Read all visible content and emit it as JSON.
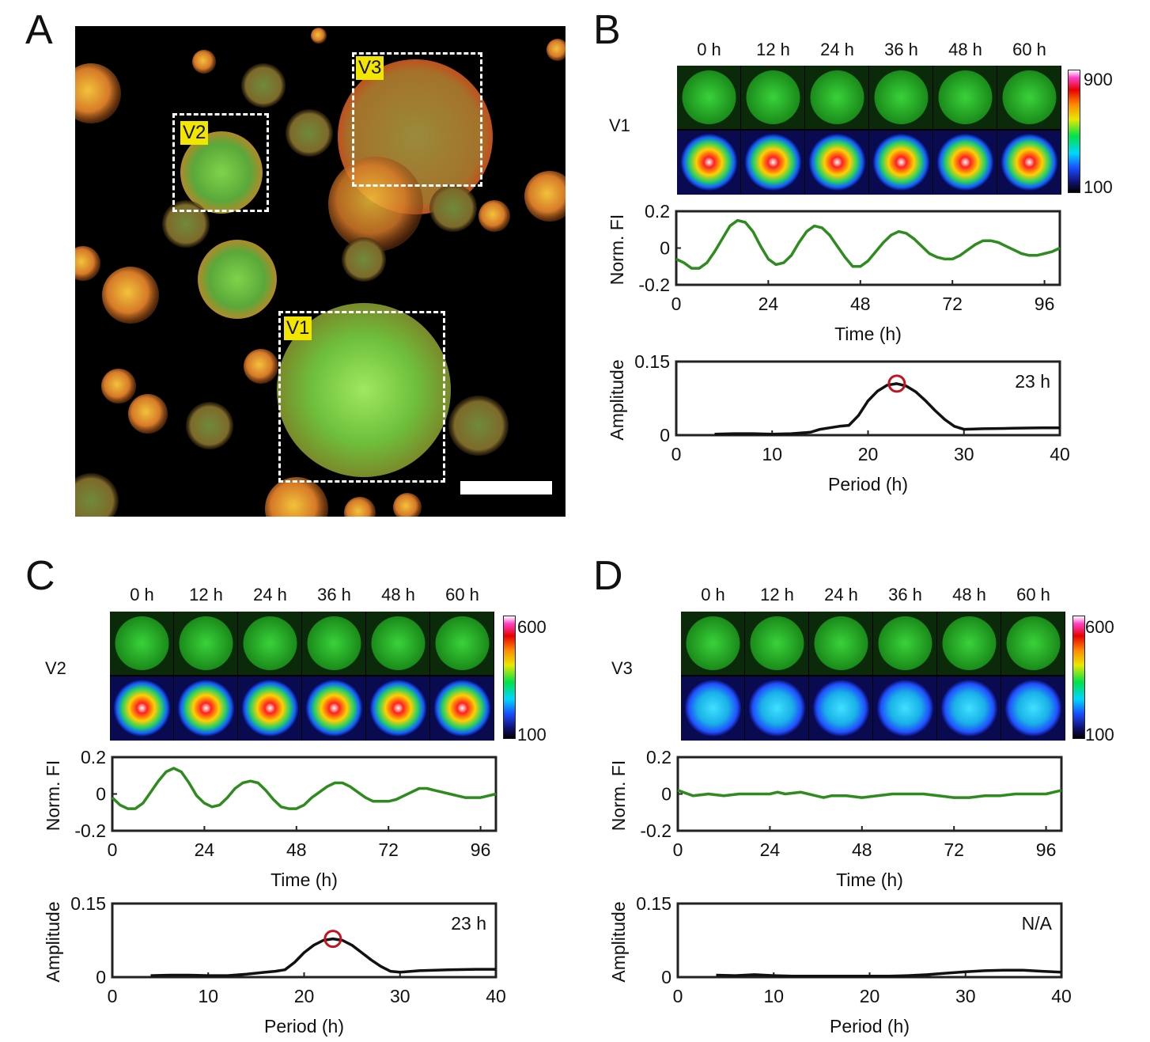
{
  "panels": {
    "A": {
      "letter": "A",
      "tags": [
        "V2",
        "V3",
        "V1"
      ]
    },
    "B": {
      "letter": "B",
      "times": [
        "0 h",
        "12 h",
        "24 h",
        "36 h",
        "48 h",
        "60 h"
      ],
      "row_label": "V1",
      "colorbar": {
        "max": "900",
        "min": "100"
      },
      "fi_ylabel": "Norm. FI",
      "fi_yticks": [
        "0.2",
        "0",
        "-0.2"
      ],
      "fi_xticks": [
        "0",
        "24",
        "48",
        "72",
        "96"
      ],
      "fi_xlabel": "Time (h)",
      "amp_ylabel": "Amplitude",
      "amp_yticks": [
        "0.15",
        "0"
      ],
      "amp_xticks": [
        "0",
        "10",
        "20",
        "30",
        "40"
      ],
      "amp_xlabel": "Period (h)",
      "amp_annotation": "23 h"
    },
    "C": {
      "letter": "C",
      "times": [
        "0 h",
        "12 h",
        "24 h",
        "36 h",
        "48 h",
        "60 h"
      ],
      "row_label": "V2",
      "colorbar": {
        "max": "600",
        "min": "100"
      },
      "fi_ylabel": "Norm. FI",
      "fi_yticks": [
        "0.2",
        "0",
        "-0.2"
      ],
      "fi_xticks": [
        "0",
        "24",
        "48",
        "72",
        "96"
      ],
      "fi_xlabel": "Time (h)",
      "amp_ylabel": "Amplitude",
      "amp_yticks": [
        "0.15",
        "0"
      ],
      "amp_xticks": [
        "0",
        "10",
        "20",
        "30",
        "40"
      ],
      "amp_xlabel": "Period (h)",
      "amp_annotation": "23 h"
    },
    "D": {
      "letter": "D",
      "times": [
        "0 h",
        "12 h",
        "24 h",
        "36 h",
        "48 h",
        "60 h"
      ],
      "row_label": "V3",
      "colorbar": {
        "max": "600",
        "min": "100"
      },
      "fi_ylabel": "Norm. FI",
      "fi_yticks": [
        "0.2",
        "0",
        "-0.2"
      ],
      "fi_xticks": [
        "0",
        "24",
        "48",
        "72",
        "96"
      ],
      "fi_xlabel": "Time (h)",
      "amp_ylabel": "Amplitude",
      "amp_yticks": [
        "0.15",
        "0"
      ],
      "amp_xticks": [
        "0",
        "10",
        "20",
        "30",
        "40"
      ],
      "amp_xlabel": "Period (h)",
      "amp_annotation": "N/A"
    }
  },
  "colors": {
    "trace": "#2e8b1e",
    "spectrum": "#111111",
    "peak_marker": "#c0141e",
    "tag": "#f2e600"
  },
  "chart_data": [
    {
      "panel": "B",
      "type": "line",
      "xlabel": "Time (h)",
      "ylabel": "Norm. FI",
      "xlim": [
        0,
        100
      ],
      "ylim": [
        -0.2,
        0.2
      ],
      "x": [
        0,
        2,
        4,
        6,
        8,
        10,
        12,
        14,
        16,
        18,
        20,
        22,
        24,
        26,
        28,
        30,
        32,
        34,
        36,
        38,
        40,
        42,
        44,
        46,
        48,
        50,
        52,
        54,
        56,
        58,
        60,
        62,
        64,
        66,
        68,
        70,
        72,
        74,
        76,
        78,
        80,
        82,
        84,
        86,
        88,
        90,
        92,
        94,
        96,
        98,
        100
      ],
      "values": [
        -0.06,
        -0.08,
        -0.11,
        -0.11,
        -0.08,
        -0.02,
        0.05,
        0.12,
        0.15,
        0.14,
        0.09,
        0.01,
        -0.06,
        -0.09,
        -0.08,
        -0.04,
        0.03,
        0.09,
        0.12,
        0.11,
        0.07,
        0.01,
        -0.05,
        -0.1,
        -0.1,
        -0.07,
        -0.02,
        0.03,
        0.07,
        0.09,
        0.08,
        0.05,
        0.01,
        -0.03,
        -0.05,
        -0.06,
        -0.06,
        -0.04,
        -0.01,
        0.02,
        0.04,
        0.04,
        0.03,
        0.01,
        -0.01,
        -0.03,
        -0.04,
        -0.04,
        -0.03,
        -0.02,
        0.0
      ]
    },
    {
      "panel": "B",
      "type": "line",
      "xlabel": "Period (h)",
      "ylabel": "Amplitude",
      "xlim": [
        0,
        40
      ],
      "ylim": [
        0,
        0.15
      ],
      "x": [
        4,
        6,
        8,
        10,
        12,
        14,
        15,
        16,
        17,
        18,
        19,
        20,
        21,
        22,
        23,
        24,
        25,
        26,
        27,
        28,
        29,
        30,
        32,
        35,
        38,
        40
      ],
      "values": [
        0.002,
        0.003,
        0.003,
        0.002,
        0.003,
        0.006,
        0.012,
        0.015,
        0.018,
        0.02,
        0.04,
        0.07,
        0.09,
        0.102,
        0.105,
        0.1,
        0.088,
        0.07,
        0.05,
        0.032,
        0.018,
        0.012,
        0.013,
        0.014,
        0.015,
        0.015
      ],
      "peak": {
        "x": 23,
        "y": 0.105
      }
    },
    {
      "panel": "C",
      "type": "line",
      "xlabel": "Time (h)",
      "ylabel": "Norm. FI",
      "xlim": [
        0,
        100
      ],
      "ylim": [
        -0.2,
        0.2
      ],
      "x": [
        0,
        2,
        4,
        6,
        8,
        10,
        12,
        14,
        16,
        18,
        20,
        22,
        24,
        26,
        28,
        30,
        32,
        34,
        36,
        38,
        40,
        42,
        44,
        46,
        48,
        50,
        52,
        54,
        56,
        58,
        60,
        62,
        64,
        66,
        68,
        70,
        72,
        74,
        76,
        78,
        80,
        82,
        84,
        86,
        88,
        90,
        92,
        94,
        96,
        98,
        100
      ],
      "values": [
        -0.02,
        -0.06,
        -0.08,
        -0.08,
        -0.05,
        0.01,
        0.07,
        0.12,
        0.14,
        0.12,
        0.06,
        -0.01,
        -0.05,
        -0.07,
        -0.06,
        -0.02,
        0.03,
        0.06,
        0.07,
        0.06,
        0.02,
        -0.03,
        -0.07,
        -0.08,
        -0.08,
        -0.06,
        -0.02,
        0.01,
        0.04,
        0.06,
        0.06,
        0.04,
        0.01,
        -0.02,
        -0.04,
        -0.04,
        -0.04,
        -0.03,
        -0.01,
        0.01,
        0.03,
        0.03,
        0.02,
        0.01,
        0.0,
        -0.01,
        -0.02,
        -0.02,
        -0.02,
        -0.01,
        0.0
      ]
    },
    {
      "panel": "C",
      "type": "line",
      "xlabel": "Period (h)",
      "ylabel": "Amplitude",
      "xlim": [
        0,
        40
      ],
      "ylim": [
        0,
        0.15
      ],
      "x": [
        4,
        6,
        8,
        10,
        12,
        14,
        15,
        16,
        17,
        18,
        19,
        20,
        21,
        22,
        23,
        24,
        25,
        26,
        27,
        28,
        29,
        30,
        32,
        35,
        38,
        40
      ],
      "values": [
        0.003,
        0.004,
        0.004,
        0.003,
        0.003,
        0.006,
        0.008,
        0.01,
        0.012,
        0.015,
        0.03,
        0.05,
        0.065,
        0.075,
        0.078,
        0.075,
        0.065,
        0.05,
        0.035,
        0.022,
        0.012,
        0.01,
        0.013,
        0.015,
        0.016,
        0.016
      ],
      "peak": {
        "x": 23,
        "y": 0.078
      }
    },
    {
      "panel": "D",
      "type": "line",
      "xlabel": "Time (h)",
      "ylabel": "Norm. FI",
      "xlim": [
        0,
        100
      ],
      "ylim": [
        -0.2,
        0.2
      ],
      "x": [
        0,
        4,
        8,
        12,
        16,
        20,
        24,
        26,
        28,
        32,
        36,
        38,
        40,
        44,
        48,
        52,
        56,
        60,
        64,
        68,
        72,
        76,
        80,
        84,
        88,
        92,
        96,
        100
      ],
      "values": [
        0.02,
        -0.01,
        0.0,
        -0.01,
        0.0,
        0.0,
        0.0,
        0.01,
        0.0,
        0.01,
        -0.01,
        -0.02,
        -0.01,
        -0.01,
        -0.02,
        -0.01,
        0.0,
        0.0,
        0.0,
        -0.01,
        -0.02,
        -0.02,
        -0.01,
        -0.01,
        0.0,
        0.0,
        0.0,
        0.02
      ]
    },
    {
      "panel": "D",
      "type": "line",
      "xlabel": "Period (h)",
      "ylabel": "Amplitude",
      "xlim": [
        0,
        40
      ],
      "ylim": [
        0,
        0.15
      ],
      "x": [
        4,
        6,
        8,
        10,
        12,
        14,
        16,
        18,
        20,
        22,
        24,
        26,
        28,
        30,
        32,
        34,
        36,
        38,
        40
      ],
      "values": [
        0.004,
        0.003,
        0.005,
        0.003,
        0.002,
        0.002,
        0.002,
        0.002,
        0.002,
        0.002,
        0.003,
        0.005,
        0.008,
        0.011,
        0.013,
        0.014,
        0.014,
        0.012,
        0.01
      ]
    }
  ]
}
